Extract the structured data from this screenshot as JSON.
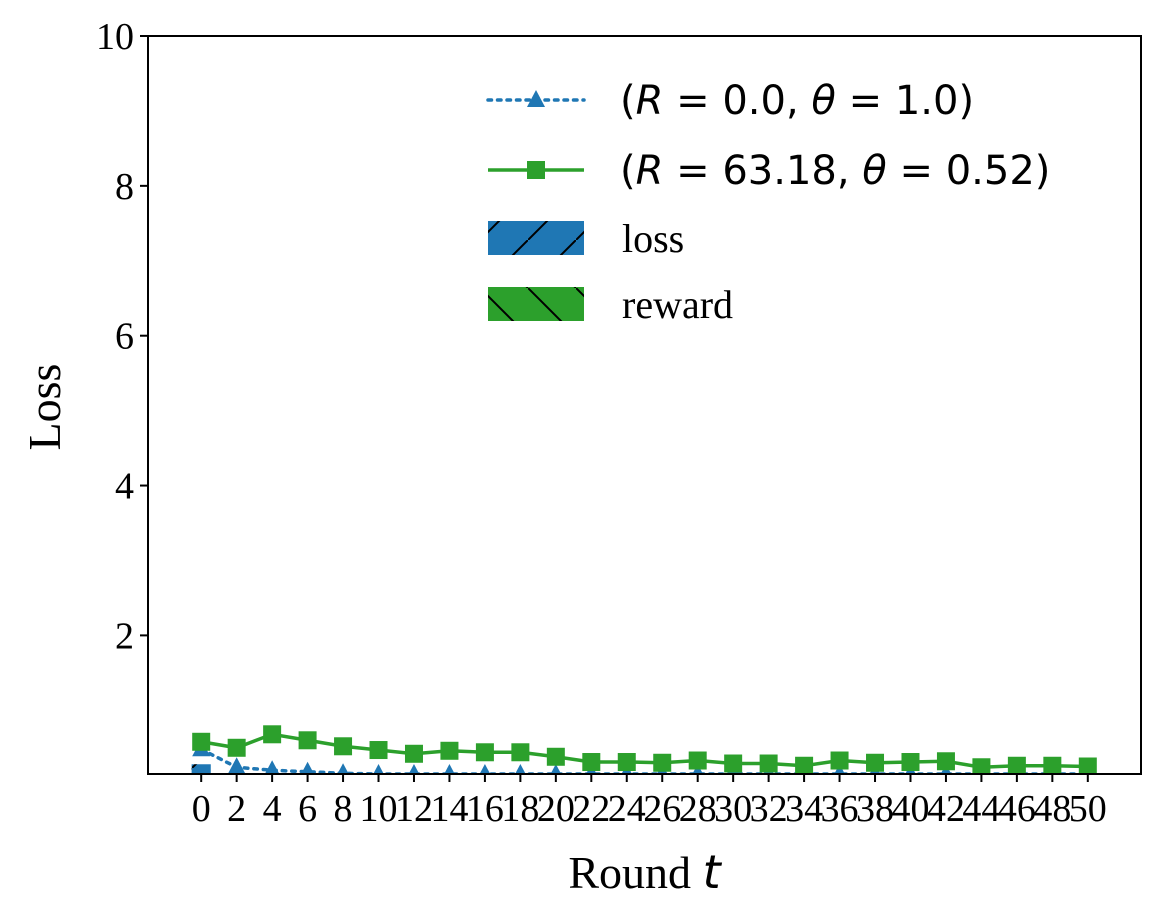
{
  "chart_data": {
    "type": "line",
    "xlabel": "Round",
    "xlabel_var": "t",
    "ylabel": "Loss",
    "ylim": [
      0.15,
      10
    ],
    "yticks": [
      2,
      4,
      6,
      8,
      10
    ],
    "x": [
      0,
      2,
      4,
      6,
      8,
      10,
      12,
      14,
      16,
      18,
      20,
      22,
      24,
      26,
      28,
      30,
      32,
      34,
      36,
      38,
      40,
      42,
      44,
      46,
      48,
      50
    ],
    "series": [
      {
        "name": "(R = 0.0, θ = 1.0)",
        "name_parts": {
          "prefix": "(",
          "r_var": "R",
          "r_val": " = 0.0, ",
          "theta_var": "θ",
          "theta_val": " = 1.0)"
        },
        "color": "#1f77b4",
        "linestyle": "dotted",
        "marker": "triangle",
        "values": [
          0.48,
          0.24,
          0.2,
          0.18,
          0.16,
          0.15,
          0.15,
          0.15,
          0.15,
          0.15,
          0.15,
          0.15,
          0.15,
          0.15,
          0.15,
          0.15,
          0.15,
          0.15,
          0.15,
          0.15,
          0.15,
          0.15,
          0.15,
          0.15,
          0.15,
          0.15
        ]
      },
      {
        "name": "(R = 63.18, θ = 0.52)",
        "name_parts": {
          "prefix": "(",
          "r_var": "R",
          "r_val": " = 63.18, ",
          "theta_var": "θ",
          "theta_val": " = 0.52)"
        },
        "color": "#2ca02c",
        "linestyle": "solid",
        "marker": "square",
        "values": [
          0.58,
          0.5,
          0.68,
          0.6,
          0.52,
          0.47,
          0.42,
          0.46,
          0.44,
          0.44,
          0.38,
          0.31,
          0.31,
          0.3,
          0.33,
          0.29,
          0.29,
          0.26,
          0.33,
          0.3,
          0.31,
          0.32,
          0.24,
          0.26,
          0.26,
          0.25
        ]
      }
    ],
    "bars": [
      {
        "name": "loss",
        "color": "#1f77b4",
        "hatch": "/",
        "x": 0,
        "value": 0.28
      }
    ],
    "legend_patches": [
      {
        "name": "loss",
        "color": "#1f77b4",
        "hatch": "/"
      },
      {
        "name": "reward",
        "color": "#2ca02c",
        "hatch": "\\"
      }
    ],
    "legend_position": "top-right",
    "grid": false
  }
}
